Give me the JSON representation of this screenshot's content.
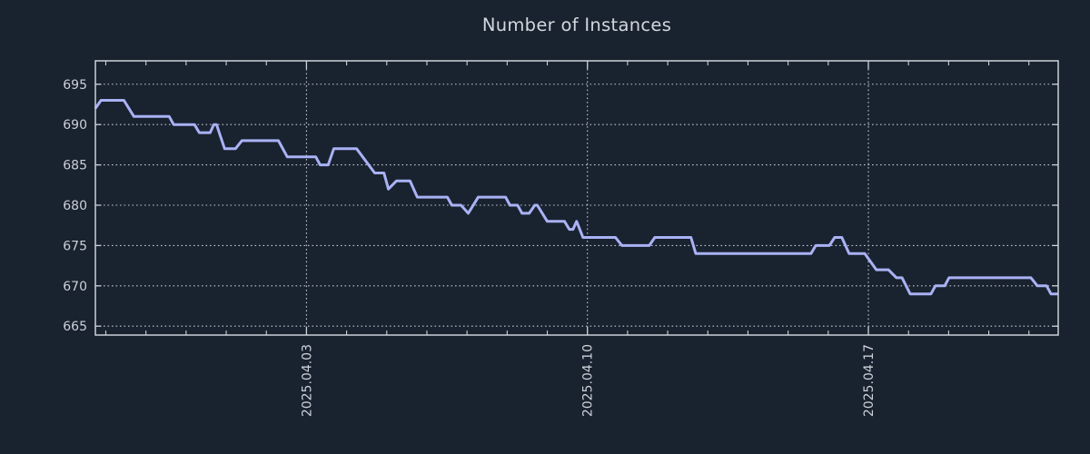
{
  "chart_data": {
    "type": "line",
    "title": "Number of Instances",
    "legend": "none",
    "grid": "dotted gridlines at major ticks, both axes",
    "x_axis": {
      "unit": "days relative to 2025-04-03 00:00",
      "range": [
        -5.26,
        18.73
      ],
      "major_ticks": [
        {
          "t": 0,
          "label": "2025.04.03"
        },
        {
          "t": 7,
          "label": "2025.04.10"
        },
        {
          "t": 14,
          "label": "2025.04.17"
        }
      ],
      "minor_tick_step": 1,
      "tick_label_rotation_deg": -90
    },
    "y_axis": {
      "range": [
        663.9,
        697.9
      ],
      "ticks": [
        665,
        670,
        675,
        680,
        685,
        690,
        695
      ]
    },
    "series": [
      {
        "name": "instances",
        "color": "#a9b2f4",
        "line_width": 3,
        "points": [
          [
            -5.26,
            692
          ],
          [
            -5.12,
            693
          ],
          [
            -4.55,
            693
          ],
          [
            -4.3,
            691
          ],
          [
            -3.42,
            691
          ],
          [
            -3.31,
            690
          ],
          [
            -2.79,
            690
          ],
          [
            -2.67,
            689
          ],
          [
            -2.4,
            689
          ],
          [
            -2.31,
            690
          ],
          [
            -2.24,
            690
          ],
          [
            -2.04,
            687
          ],
          [
            -1.77,
            687
          ],
          [
            -1.61,
            688
          ],
          [
            -0.7,
            688
          ],
          [
            -0.48,
            686
          ],
          [
            0.23,
            686
          ],
          [
            0.34,
            685
          ],
          [
            0.54,
            685
          ],
          [
            0.68,
            687
          ],
          [
            1.25,
            687
          ],
          [
            1.7,
            684
          ],
          [
            1.93,
            684
          ],
          [
            2.04,
            682
          ],
          [
            2.24,
            683
          ],
          [
            2.58,
            683
          ],
          [
            2.76,
            681
          ],
          [
            3.51,
            681
          ],
          [
            3.62,
            680
          ],
          [
            3.85,
            680
          ],
          [
            4.03,
            679
          ],
          [
            4.28,
            681
          ],
          [
            4.96,
            681
          ],
          [
            5.07,
            680
          ],
          [
            5.26,
            680
          ],
          [
            5.37,
            679
          ],
          [
            5.55,
            679
          ],
          [
            5.69,
            680
          ],
          [
            5.75,
            680
          ],
          [
            6.0,
            678
          ],
          [
            6.43,
            678
          ],
          [
            6.55,
            677
          ],
          [
            6.64,
            677
          ],
          [
            6.73,
            678
          ],
          [
            6.89,
            676
          ],
          [
            7.7,
            676
          ],
          [
            7.86,
            675
          ],
          [
            8.54,
            675
          ],
          [
            8.68,
            676
          ],
          [
            9.58,
            676
          ],
          [
            9.7,
            674
          ],
          [
            12.57,
            674
          ],
          [
            12.69,
            675
          ],
          [
            13.03,
            675
          ],
          [
            13.16,
            676
          ],
          [
            13.34,
            676
          ],
          [
            13.52,
            674
          ],
          [
            13.91,
            674
          ],
          [
            14.2,
            672
          ],
          [
            14.5,
            672
          ],
          [
            14.7,
            671
          ],
          [
            14.84,
            671
          ],
          [
            15.04,
            669
          ],
          [
            15.56,
            669
          ],
          [
            15.67,
            670
          ],
          [
            15.9,
            670
          ],
          [
            16.01,
            671
          ],
          [
            18.05,
            671
          ],
          [
            18.21,
            670
          ],
          [
            18.44,
            670
          ],
          [
            18.55,
            669
          ],
          [
            18.73,
            669
          ]
        ]
      }
    ],
    "colors": {
      "background": "#19222f",
      "line": "#a9b2f4",
      "grid": "#bfc5cd",
      "axis_border": "#ccd1d8",
      "tick_text": "#ccd1d8",
      "title_text": "#d2d7dd"
    }
  }
}
